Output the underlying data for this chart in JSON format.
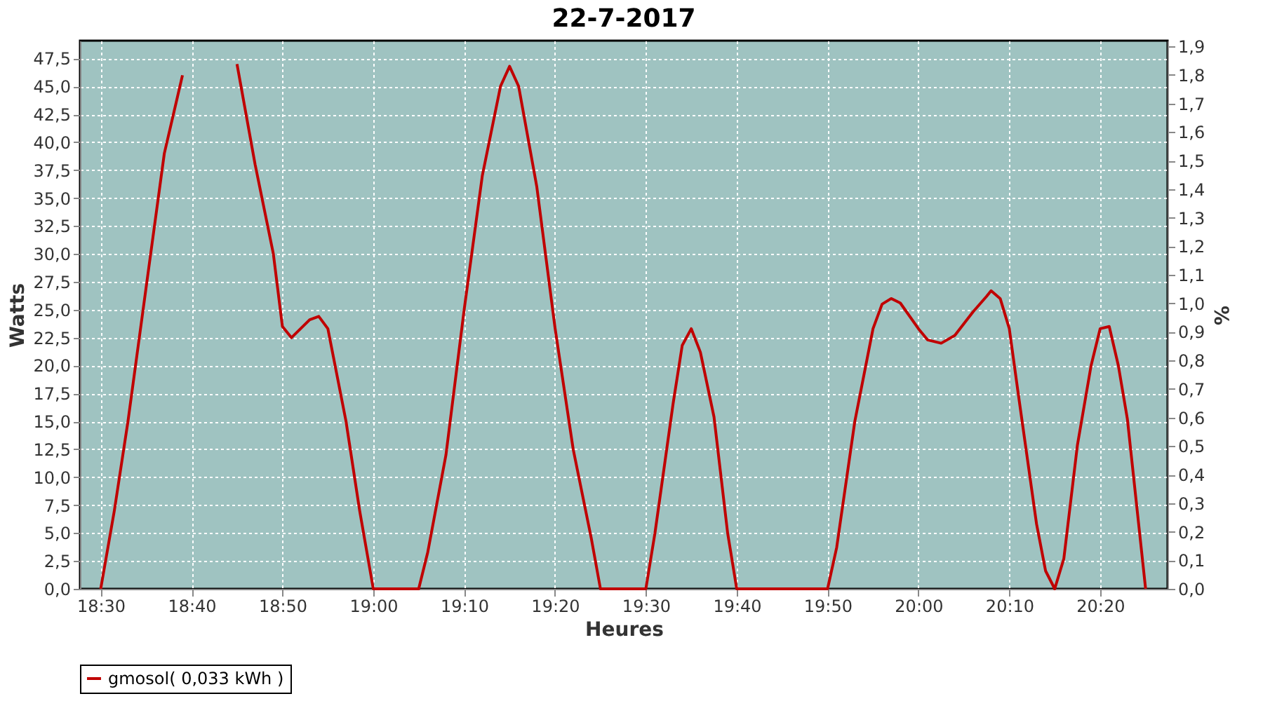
{
  "chart_data": {
    "type": "line",
    "title": "22-7-2017",
    "xlabel": "Heures",
    "ylabel": "Watts",
    "y2label": "%",
    "x": [
      18.5,
      18.525,
      18.55,
      18.5833,
      18.6167,
      18.65,
      18.6833,
      18.7067,
      18.75,
      18.7833,
      18.8167,
      18.8333,
      18.85,
      18.8833,
      18.9,
      18.9167,
      18.95,
      18.975,
      19.0,
      19.0833,
      19.1,
      19.1333,
      19.1667,
      19.2,
      19.2333,
      19.25,
      19.2667,
      19.3,
      19.3333,
      19.3667,
      19.4,
      19.4167,
      19.5,
      19.5167,
      19.55,
      19.5667,
      19.5833,
      19.6,
      19.625,
      19.65,
      19.6667,
      19.8333,
      19.85,
      19.8833,
      19.9167,
      19.9333,
      19.95,
      19.9667,
      20.0,
      20.0167,
      20.0417,
      20.0667,
      20.1,
      20.125,
      20.1333,
      20.15,
      20.1667,
      20.1833,
      20.2167,
      20.2333,
      20.25,
      20.2667,
      20.2917,
      20.3167,
      20.3333,
      20.35,
      20.3667,
      20.3833,
      20.4167
    ],
    "series": [
      {
        "name": "gmosol( 0,033 kWh )",
        "color": "#c00000",
        "values": [
          0,
          7,
          15,
          27,
          39,
          46,
          null,
          null,
          47,
          38,
          30,
          23.5,
          22.5,
          24.1,
          24.4,
          23.3,
          15,
          7,
          0,
          0,
          3.3,
          12,
          25,
          37,
          45,
          46.8,
          45,
          36,
          23.4,
          12.5,
          4.5,
          0,
          0,
          5,
          16.6,
          21.8,
          23.3,
          21.2,
          15.4,
          5,
          0,
          0,
          3.7,
          15,
          23.3,
          25.5,
          26,
          25.6,
          23.3,
          22.3,
          22,
          22.7,
          24.8,
          26.2,
          26.7,
          26,
          23.3,
          17.4,
          5.8,
          1.6,
          0,
          2.7,
          12.9,
          20,
          23.3,
          23.5,
          20,
          15.2,
          0
        ]
      }
    ],
    "xlim": [
      18.462,
      20.457
    ],
    "xticks": [
      {
        "value": 18.5,
        "label": "18:30"
      },
      {
        "value": 18.6667,
        "label": "18:40"
      },
      {
        "value": 18.8333,
        "label": "18:50"
      },
      {
        "value": 19.0,
        "label": "19:00"
      },
      {
        "value": 19.1667,
        "label": "19:10"
      },
      {
        "value": 19.3333,
        "label": "19:20"
      },
      {
        "value": 19.5,
        "label": "19:30"
      },
      {
        "value": 19.6667,
        "label": "19:40"
      },
      {
        "value": 19.8333,
        "label": "19:50"
      },
      {
        "value": 20.0,
        "label": "20:00"
      },
      {
        "value": 20.1667,
        "label": "20:10"
      },
      {
        "value": 20.3333,
        "label": "20:20"
      }
    ],
    "ylim": [
      0,
      49.1
    ],
    "yticks": [
      {
        "value": 0,
        "label": "0,0"
      },
      {
        "value": 2.5,
        "label": "2,5"
      },
      {
        "value": 5,
        "label": "5,0"
      },
      {
        "value": 7.5,
        "label": "7,5"
      },
      {
        "value": 10,
        "label": "10,0"
      },
      {
        "value": 12.5,
        "label": "12,5"
      },
      {
        "value": 15,
        "label": "15,0"
      },
      {
        "value": 17.5,
        "label": "17,5"
      },
      {
        "value": 20,
        "label": "20,0"
      },
      {
        "value": 22.5,
        "label": "22,5"
      },
      {
        "value": 25,
        "label": "25,0"
      },
      {
        "value": 27.5,
        "label": "27,5"
      },
      {
        "value": 30,
        "label": "30,0"
      },
      {
        "value": 32.5,
        "label": "32,5"
      },
      {
        "value": 35,
        "label": "35,0"
      },
      {
        "value": 37.5,
        "label": "37,5"
      },
      {
        "value": 40,
        "label": "40,0"
      },
      {
        "value": 42.5,
        "label": "42,5"
      },
      {
        "value": 45,
        "label": "45,0"
      },
      {
        "value": 47.5,
        "label": "47,5"
      }
    ],
    "y2lim": [
      0,
      1.92
    ],
    "y2ticks": [
      {
        "value": 0,
        "label": "0,0"
      },
      {
        "value": 0.1,
        "label": "0,1"
      },
      {
        "value": 0.2,
        "label": "0,2"
      },
      {
        "value": 0.3,
        "label": "0,3"
      },
      {
        "value": 0.4,
        "label": "0,4"
      },
      {
        "value": 0.5,
        "label": "0,5"
      },
      {
        "value": 0.6,
        "label": "0,6"
      },
      {
        "value": 0.7,
        "label": "0,7"
      },
      {
        "value": 0.8,
        "label": "0,8"
      },
      {
        "value": 0.9,
        "label": "0,9"
      },
      {
        "value": 1.0,
        "label": "1,0"
      },
      {
        "value": 1.1,
        "label": "1,1"
      },
      {
        "value": 1.2,
        "label": "1,2"
      },
      {
        "value": 1.3,
        "label": "1,3"
      },
      {
        "value": 1.4,
        "label": "1,4"
      },
      {
        "value": 1.5,
        "label": "1,5"
      },
      {
        "value": 1.6,
        "label": "1,6"
      },
      {
        "value": 1.7,
        "label": "1,7"
      },
      {
        "value": 1.8,
        "label": "1,8"
      },
      {
        "value": 1.9,
        "label": "1,9"
      }
    ],
    "grid": true,
    "legend": "bottom",
    "marker": "none",
    "line_style": "solid"
  }
}
